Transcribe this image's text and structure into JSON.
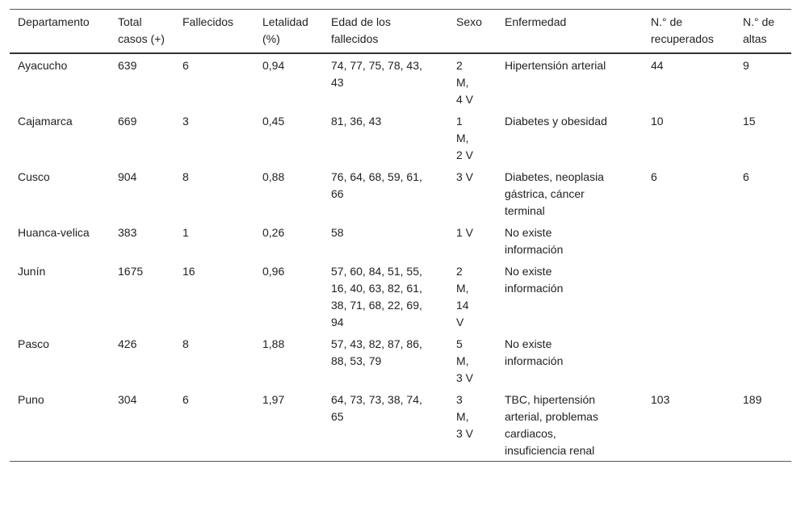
{
  "table": {
    "headers": [
      "Departamento",
      "Total casos (+)",
      "Fallecidos",
      "Letalidad (%)",
      "Edad de los fallecidos",
      "Sexo",
      "Enfermedad",
      "N.° de recuperados",
      "N.° de altas"
    ],
    "rows": [
      [
        "Ayacucho",
        "639",
        "6",
        "0,94",
        "74, 77, 75, 78, 43, 43",
        "2 M, 4 V",
        "Hipertensión arterial",
        "44",
        "9"
      ],
      [
        "Cajamarca",
        "669",
        "3",
        "0,45",
        "81, 36, 43",
        "1 M, 2 V",
        "Diabetes y obesidad",
        "10",
        "15"
      ],
      [
        "Cusco",
        "904",
        "8",
        "0,88",
        "76, 64, 68, 59, 61, 66",
        "3 V",
        "Diabetes, neoplasia gástrica, cáncer terminal",
        "6",
        "6"
      ],
      [
        "Huanca-velica",
        "383",
        "1",
        "0,26",
        "58",
        "1 V",
        "No existe información",
        "",
        ""
      ],
      [
        "Junín",
        "1675",
        "16",
        "0,96",
        "57, 60, 84, 51, 55, 16, 40, 63, 82, 61, 38, 71, 68, 22, 69, 94",
        "2 M, 14 V",
        "No existe información",
        "",
        ""
      ],
      [
        "Pasco",
        "426",
        "8",
        "1,88",
        "57, 43, 82, 87, 86, 88, 53, 79",
        "5 M, 3 V",
        "No existe información",
        "",
        ""
      ],
      [
        "Puno",
        "304",
        "6",
        "1,97",
        "64, 73, 73, 38, 74, 65",
        "3 M, 3 V",
        "TBC, hipertensión arterial, problemas cardiacos, insuficiencia renal",
        "103",
        "189"
      ]
    ]
  }
}
